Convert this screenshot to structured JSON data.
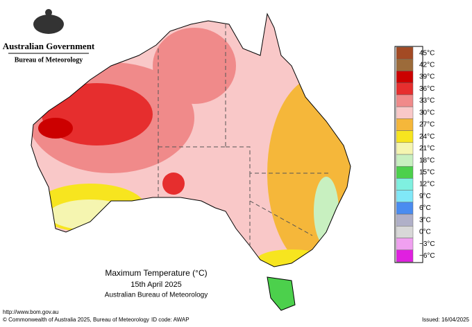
{
  "header": {
    "agency": "Australian Government",
    "bureau": "Bureau of Meteorology"
  },
  "legend": {
    "items": [
      {
        "label": "45°C",
        "color": "#a34a24"
      },
      {
        "label": "42°C",
        "color": "#9c6b3a"
      },
      {
        "label": "39°C",
        "color": "#cc0000"
      },
      {
        "label": "36°C",
        "color": "#e62e2e"
      },
      {
        "label": "33°C",
        "color": "#f08a8a"
      },
      {
        "label": "30°C",
        "color": "#f9c8c8"
      },
      {
        "label": "27°C",
        "color": "#f5b73a"
      },
      {
        "label": "24°C",
        "color": "#f7e51f"
      },
      {
        "label": "21°C",
        "color": "#f5f5b0"
      },
      {
        "label": "18°C",
        "color": "#c8f0c0"
      },
      {
        "label": "15°C",
        "color": "#4cd04c"
      },
      {
        "label": "12°C",
        "color": "#7ff0e0"
      },
      {
        "label": "9°C",
        "color": "#80e8f8"
      },
      {
        "label": "6°C",
        "color": "#4a8cf0"
      },
      {
        "label": "3°C",
        "color": "#b0b0c8"
      },
      {
        "label": "0°C",
        "color": "#d8d8d8"
      },
      {
        "label": "−3°C",
        "color": "#f0a0f0"
      },
      {
        "label": "−6°C",
        "color": "#e020e0"
      }
    ]
  },
  "caption": {
    "title": "Maximum Temperature (°C)",
    "date": "15th April 2025",
    "source": "Australian Bureau of Meteorology"
  },
  "footer": {
    "url": "http://www.bom.gov.au",
    "copyright": "© Commonwealth of Australia 2025, Bureau of Meteorology",
    "id_code": "ID code: AWAP",
    "issued": "Issued: 16/04/2025"
  }
}
